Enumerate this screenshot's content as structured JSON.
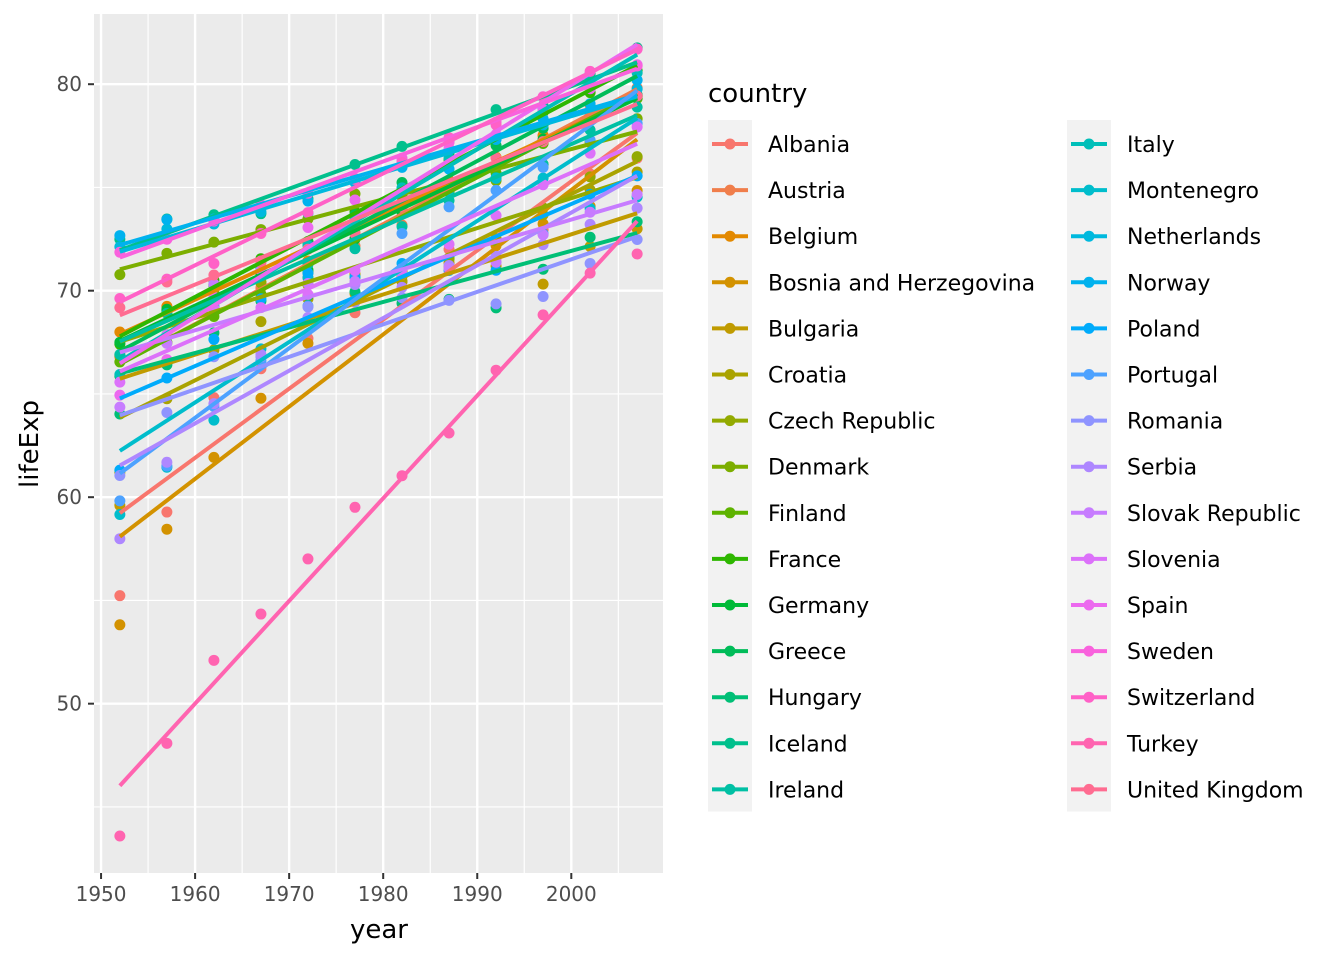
{
  "chart_data": {
    "type": "scatter",
    "xlabel": "year",
    "ylabel": "lifeExp",
    "xlim": [
      1949.25,
      2009.75
    ],
    "ylim": [
      41.8,
      83.4
    ],
    "x_ticks": [
      1950,
      1960,
      1970,
      1980,
      1990,
      2000
    ],
    "y_ticks": [
      50,
      60,
      70,
      80
    ],
    "grid": true,
    "trend_lines": "linear fit per country",
    "legend": {
      "title": "country",
      "placement": "right"
    },
    "x": [
      1952,
      1957,
      1962,
      1967,
      1972,
      1977,
      1982,
      1987,
      1992,
      1997,
      2002,
      2007
    ],
    "series": [
      {
        "name": "Albania",
        "color": "#F8766D",
        "values": [
          55.23,
          59.28,
          64.82,
          66.22,
          67.69,
          68.93,
          70.42,
          72.0,
          71.58,
          72.95,
          75.65,
          76.42
        ]
      },
      {
        "name": "Austria",
        "color": "#F07E4B",
        "values": [
          66.8,
          67.48,
          69.54,
          70.14,
          70.63,
          72.17,
          73.18,
          74.94,
          76.04,
          77.51,
          78.98,
          79.83
        ]
      },
      {
        "name": "Belgium",
        "color": "#E38900",
        "values": [
          68.0,
          69.24,
          70.25,
          70.94,
          71.44,
          72.8,
          73.93,
          75.35,
          76.46,
          77.53,
          78.32,
          79.44
        ]
      },
      {
        "name": "Bosnia and Herzegovina",
        "color": "#D39200",
        "values": [
          53.82,
          58.45,
          61.93,
          64.79,
          67.45,
          69.86,
          70.69,
          71.14,
          72.18,
          73.24,
          74.09,
          74.85
        ]
      },
      {
        "name": "Bulgaria",
        "color": "#C09B00",
        "values": [
          59.6,
          66.61,
          69.51,
          70.42,
          70.9,
          70.81,
          71.08,
          71.34,
          71.19,
          70.32,
          72.14,
          73.0
        ]
      },
      {
        "name": "Croatia",
        "color": "#AAA300",
        "values": [
          61.21,
          64.77,
          67.13,
          68.5,
          69.61,
          70.64,
          70.46,
          71.52,
          72.53,
          73.68,
          74.88,
          75.75
        ]
      },
      {
        "name": "Czech Republic",
        "color": "#93AA00",
        "values": [
          66.87,
          69.03,
          69.9,
          70.38,
          70.29,
          70.71,
          70.96,
          71.58,
          72.4,
          74.01,
          75.51,
          76.49
        ]
      },
      {
        "name": "Denmark",
        "color": "#7CAE00",
        "values": [
          70.78,
          71.81,
          72.35,
          72.96,
          73.47,
          74.69,
          74.63,
          74.8,
          75.33,
          76.11,
          77.18,
          78.33
        ]
      },
      {
        "name": "Finland",
        "color": "#5EB300",
        "values": [
          66.55,
          67.49,
          68.75,
          69.83,
          70.87,
          72.52,
          74.55,
          74.83,
          75.7,
          77.13,
          78.37,
          79.31
        ]
      },
      {
        "name": "France",
        "color": "#2EB700",
        "values": [
          67.41,
          68.93,
          70.51,
          71.55,
          72.38,
          73.83,
          74.89,
          76.34,
          77.46,
          78.64,
          79.59,
          80.66
        ]
      },
      {
        "name": "Germany",
        "color": "#00BA38",
        "values": [
          67.5,
          69.1,
          70.3,
          70.8,
          71.0,
          72.5,
          73.8,
          74.847,
          76.07,
          77.34,
          78.67,
          79.406
        ]
      },
      {
        "name": "Greece",
        "color": "#00BC59",
        "values": [
          65.86,
          67.86,
          69.51,
          71.0,
          72.34,
          73.68,
          75.24,
          76.67,
          77.03,
          77.87,
          78.26,
          79.48
        ]
      },
      {
        "name": "Hungary",
        "color": "#00BF76",
        "values": [
          64.03,
          66.41,
          67.96,
          69.5,
          69.76,
          69.95,
          69.39,
          69.58,
          69.17,
          71.04,
          72.59,
          73.34
        ]
      },
      {
        "name": "Iceland",
        "color": "#00C08D",
        "values": [
          72.49,
          73.47,
          73.68,
          73.73,
          74.46,
          76.11,
          76.99,
          77.23,
          78.77,
          78.95,
          80.5,
          81.76
        ]
      },
      {
        "name": "Ireland",
        "color": "#00C0A4",
        "values": [
          66.91,
          68.9,
          70.29,
          71.08,
          71.28,
          72.03,
          73.1,
          74.36,
          75.47,
          76.12,
          77.78,
          78.89
        ]
      },
      {
        "name": "Italy",
        "color": "#00BFB9",
        "values": [
          65.94,
          67.81,
          69.24,
          71.06,
          72.19,
          73.48,
          74.98,
          76.42,
          77.44,
          78.82,
          80.24,
          80.55
        ]
      },
      {
        "name": "Montenegro",
        "color": "#00BDCC",
        "values": [
          59.16,
          61.45,
          63.73,
          67.18,
          70.64,
          73.07,
          74.1,
          74.87,
          75.44,
          75.45,
          73.98,
          74.54
        ]
      },
      {
        "name": "Netherlands",
        "color": "#00B9DE",
        "values": [
          72.13,
          72.99,
          73.23,
          73.82,
          73.75,
          75.24,
          76.05,
          76.83,
          77.42,
          78.03,
          78.53,
          79.76
        ]
      },
      {
        "name": "Norway",
        "color": "#00B2EE",
        "values": [
          72.67,
          73.44,
          73.47,
          74.08,
          74.34,
          75.37,
          75.97,
          75.89,
          77.32,
          78.32,
          79.05,
          80.2
        ]
      },
      {
        "name": "Poland",
        "color": "#00ABFB",
        "values": [
          61.31,
          65.77,
          67.64,
          69.61,
          70.85,
          70.67,
          71.32,
          70.98,
          70.99,
          72.75,
          74.67,
          75.56
        ]
      },
      {
        "name": "Portugal",
        "color": "#4DA2FF",
        "values": [
          59.82,
          61.51,
          64.39,
          66.6,
          69.26,
          70.41,
          72.77,
          74.06,
          74.86,
          75.97,
          77.29,
          78.1
        ]
      },
      {
        "name": "Romania",
        "color": "#8F94FF",
        "values": [
          61.05,
          64.1,
          66.8,
          66.8,
          69.21,
          69.46,
          69.66,
          69.53,
          69.36,
          69.72,
          71.32,
          72.48
        ]
      },
      {
        "name": "Serbia",
        "color": "#AE87FF",
        "values": [
          57.99,
          61.69,
          64.53,
          66.91,
          68.7,
          70.3,
          70.16,
          71.22,
          71.66,
          72.23,
          73.21,
          74.0
        ]
      },
      {
        "name": "Slovak Republic",
        "color": "#C77CFF",
        "values": [
          64.36,
          67.45,
          70.33,
          70.98,
          70.35,
          70.45,
          70.8,
          71.08,
          71.38,
          72.71,
          73.8,
          74.66
        ]
      },
      {
        "name": "Slovenia",
        "color": "#DC71FA",
        "values": [
          65.57,
          67.85,
          69.15,
          69.18,
          69.82,
          70.97,
          71.06,
          72.25,
          73.64,
          75.13,
          76.66,
          77.93
        ]
      },
      {
        "name": "Spain",
        "color": "#EC69EF",
        "values": [
          64.94,
          66.66,
          69.69,
          71.44,
          73.06,
          74.39,
          76.3,
          76.9,
          77.57,
          78.77,
          79.78,
          80.94
        ]
      },
      {
        "name": "Sweden",
        "color": "#F962DD",
        "values": [
          71.86,
          72.49,
          73.37,
          74.16,
          74.72,
          75.44,
          76.42,
          77.19,
          78.16,
          79.39,
          80.04,
          80.88
        ]
      },
      {
        "name": "Switzerland",
        "color": "#FF61C7",
        "values": [
          69.62,
          70.56,
          71.32,
          72.77,
          73.78,
          75.39,
          76.21,
          77.41,
          78.03,
          79.37,
          80.62,
          81.7
        ]
      },
      {
        "name": "Turkey",
        "color": "#FF64B0",
        "values": [
          43.59,
          48.08,
          52.1,
          54.34,
          57.01,
          59.51,
          61.04,
          63.11,
          66.15,
          68.83,
          70.85,
          71.78
        ]
      },
      {
        "name": "United Kingdom",
        "color": "#FF6C91",
        "values": [
          69.18,
          70.42,
          70.76,
          71.36,
          72.01,
          72.76,
          74.04,
          75.01,
          76.42,
          77.22,
          78.47,
          79.43
        ]
      }
    ]
  }
}
